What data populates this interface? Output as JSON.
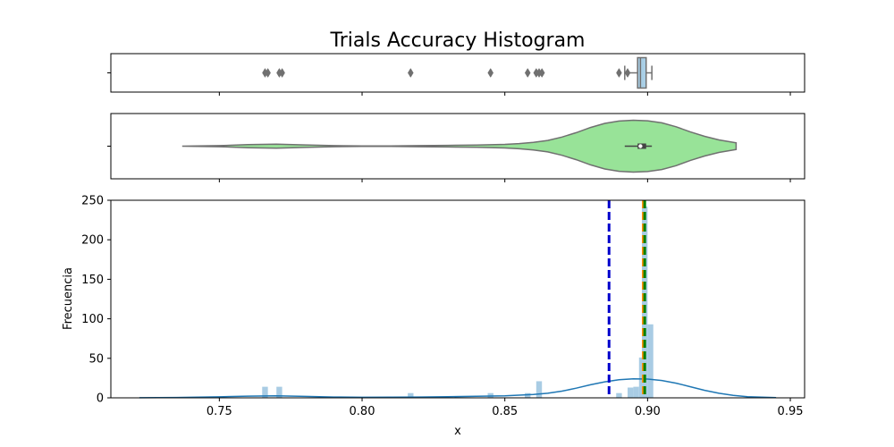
{
  "chart_data": [
    {
      "type": "box",
      "title": "Trials Accuracy Histogram",
      "xlim": [
        0.712,
        0.955
      ],
      "box": {
        "q1": 0.8965,
        "median": 0.8975,
        "q3": 0.8995,
        "whisker_low": 0.892,
        "whisker_high": 0.9015
      },
      "outliers": [
        0.766,
        0.767,
        0.771,
        0.772,
        0.817,
        0.845,
        0.858,
        0.861,
        0.862,
        0.863,
        0.89,
        0.893
      ],
      "colors": {
        "box_fill": "#a9cfe6",
        "line": "#707070"
      }
    },
    {
      "type": "violin",
      "xlim": [
        0.712,
        0.955
      ],
      "x": [
        0.737,
        0.75,
        0.76,
        0.77,
        0.78,
        0.79,
        0.8,
        0.81,
        0.82,
        0.83,
        0.84,
        0.85,
        0.855,
        0.86,
        0.865,
        0.87,
        0.875,
        0.88,
        0.885,
        0.89,
        0.895,
        0.9,
        0.905,
        0.91,
        0.915,
        0.92,
        0.925,
        0.931
      ],
      "density": [
        0.0,
        0.02,
        0.06,
        0.08,
        0.05,
        0.02,
        0.01,
        0.01,
        0.02,
        0.03,
        0.04,
        0.07,
        0.1,
        0.15,
        0.22,
        0.35,
        0.52,
        0.72,
        0.88,
        0.97,
        1.0,
        0.98,
        0.9,
        0.75,
        0.55,
        0.38,
        0.24,
        0.13
      ],
      "box": {
        "q1": 0.8965,
        "median": 0.8975,
        "q3": 0.8995,
        "whisker_low": 0.892,
        "whisker_high": 0.9015
      },
      "colors": {
        "fill": "#98e398",
        "line": "#707070"
      }
    },
    {
      "type": "histogram",
      "xlabel": "x",
      "ylabel": "Frecuencia",
      "xlim": [
        0.712,
        0.955
      ],
      "ylim": [
        0,
        250
      ],
      "xticks": [
        "0.75",
        "0.80",
        "0.85",
        "0.90",
        "0.95"
      ],
      "yticks": [
        "0",
        "50",
        "100",
        "150",
        "200",
        "250"
      ],
      "bin_width": 0.002,
      "bars": [
        {
          "x": 0.766,
          "count": 14
        },
        {
          "x": 0.771,
          "count": 14
        },
        {
          "x": 0.817,
          "count": 6
        },
        {
          "x": 0.845,
          "count": 6
        },
        {
          "x": 0.858,
          "count": 6
        },
        {
          "x": 0.862,
          "count": 21
        },
        {
          "x": 0.89,
          "count": 6
        },
        {
          "x": 0.894,
          "count": 13
        },
        {
          "x": 0.896,
          "count": 14
        },
        {
          "x": 0.898,
          "count": 51
        },
        {
          "x": 0.899,
          "count": 242
        },
        {
          "x": 0.901,
          "count": 93
        }
      ],
      "kde_x": [
        0.722,
        0.735,
        0.75,
        0.76,
        0.77,
        0.78,
        0.79,
        0.8,
        0.81,
        0.82,
        0.83,
        0.84,
        0.85,
        0.86,
        0.865,
        0.87,
        0.875,
        0.88,
        0.885,
        0.89,
        0.895,
        0.9,
        0.905,
        0.91,
        0.915,
        0.92,
        0.925,
        0.93,
        0.935,
        0.945
      ],
      "kde_y": [
        0.1,
        0.4,
        1.2,
        2.2,
        2.6,
        1.8,
        1.0,
        0.7,
        0.8,
        1.0,
        1.4,
        1.9,
        2.6,
        4.2,
        5.8,
        8.5,
        12.2,
        16.5,
        20.2,
        22.8,
        24.0,
        23.8,
        22.0,
        18.5,
        14.0,
        9.5,
        5.8,
        3.0,
        1.4,
        0.2
      ],
      "vlines": [
        {
          "x": 0.8865,
          "color": "#0000cc",
          "style": "dashed"
        },
        {
          "x": 0.8985,
          "color": "#ff8c00",
          "style": "dashed"
        },
        {
          "x": 0.899,
          "color": "#008000",
          "style": "dashed"
        }
      ],
      "colors": {
        "bar": "#a9cce4",
        "kde": "#1f77b4"
      }
    }
  ]
}
